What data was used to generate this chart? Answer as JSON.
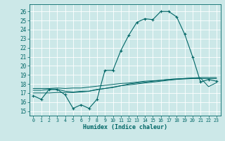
{
  "xlabel": "Humidex (Indice chaleur)",
  "bg_color": "#cce8e8",
  "grid_color": "#b0d8d8",
  "line_color": "#006666",
  "x_ticks": [
    0,
    1,
    2,
    3,
    4,
    5,
    6,
    7,
    8,
    9,
    10,
    11,
    12,
    13,
    14,
    15,
    16,
    17,
    18,
    19,
    20,
    21,
    22,
    23
  ],
  "y_ticks": [
    15,
    16,
    17,
    18,
    19,
    20,
    21,
    22,
    23,
    24,
    25,
    26
  ],
  "xlim": [
    -0.5,
    23.5
  ],
  "ylim": [
    14.5,
    26.8
  ],
  "series": [
    [
      16.7,
      16.3,
      17.4,
      17.4,
      16.8,
      15.3,
      15.7,
      15.3,
      16.3,
      19.5,
      19.5,
      21.7,
      23.4,
      24.8,
      25.2,
      25.1,
      26.0,
      26.0,
      25.4,
      23.5,
      21.0,
      18.2,
      18.5,
      18.3
    ],
    [
      17.3,
      17.3,
      17.4,
      17.4,
      17.2,
      17.1,
      17.2,
      17.2,
      17.4,
      17.5,
      17.6,
      17.8,
      18.0,
      18.1,
      18.2,
      18.3,
      18.4,
      18.5,
      18.55,
      18.6,
      18.65,
      18.7,
      18.7,
      18.7
    ],
    [
      17.0,
      17.0,
      17.0,
      17.05,
      17.05,
      17.05,
      17.1,
      17.2,
      17.35,
      17.5,
      17.65,
      17.8,
      17.9,
      18.0,
      18.1,
      18.2,
      18.3,
      18.4,
      18.5,
      18.55,
      18.6,
      18.6,
      18.6,
      18.6
    ],
    [
      17.5,
      17.5,
      17.5,
      17.55,
      17.5,
      17.55,
      17.55,
      17.65,
      17.75,
      17.85,
      17.95,
      18.05,
      18.1,
      18.2,
      18.3,
      18.35,
      18.4,
      18.5,
      18.55,
      18.6,
      18.65,
      18.65,
      17.7,
      18.15
    ]
  ]
}
